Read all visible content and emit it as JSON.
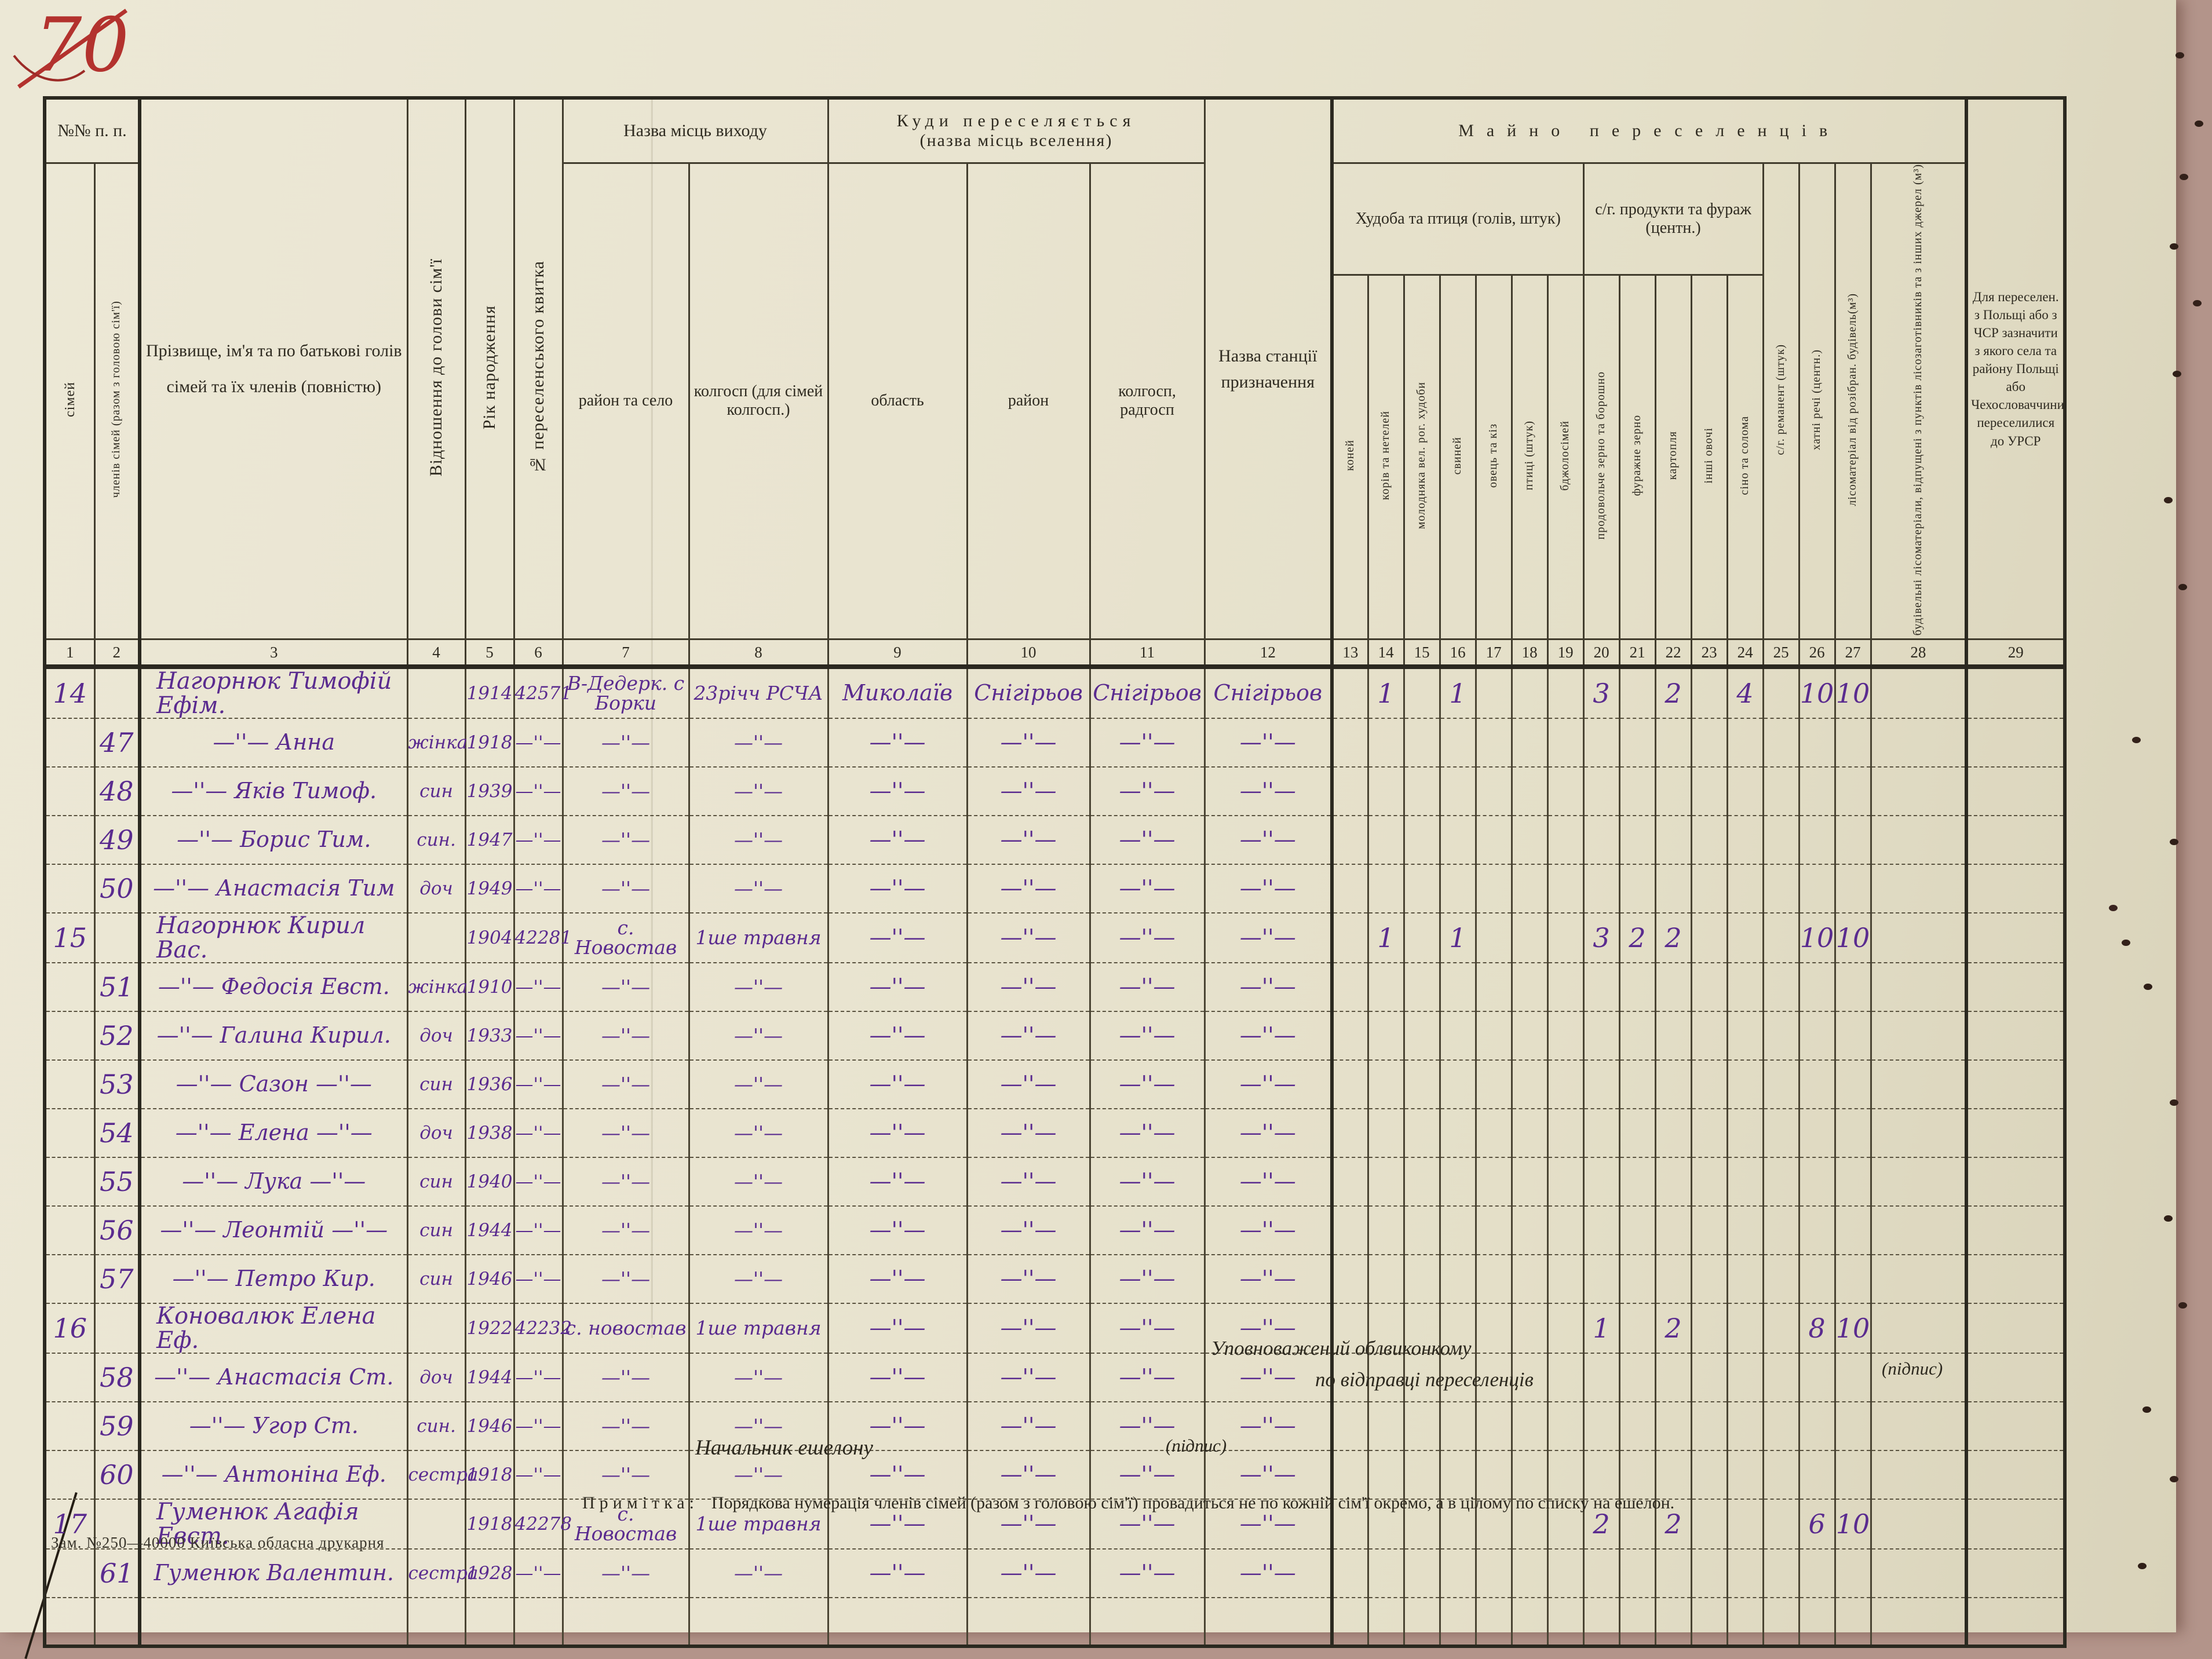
{
  "page": {
    "corner_mark": "70",
    "print_note": "Зам. №250—40000 Київська обласна друкарня"
  },
  "table": {
    "groups": {
      "nn": "№№ п. п.",
      "vyhid": "Назва місць виходу",
      "kudy": "Куди переселяється",
      "kudy_sub": "(назва місць вселення)",
      "maino": "Майно переселенців",
      "khudoba": "Худоба та птиця (голів, штук)",
      "produkty": "с/г. продукти та фураж (центн.)"
    },
    "columns": [
      "сімей",
      "членів сімей (разом з головою сім'ї)",
      "Прізвище, ім'я та по батькові голів сімей та їх членів (повністю)",
      "Відношення до голови сім'ї",
      "Рік народження",
      "№ переселенського квитка",
      "район та село",
      "колгосп (для сімей колгосп.)",
      "область",
      "район",
      "колгосп, радгосп",
      "Назва станції призначення",
      "коней",
      "корів та нетелей",
      "молодняка вел. рог. худоби",
      "свиней",
      "овець та кіз",
      "птиці (штук)",
      "бджолосімей",
      "продовольче зерно та борошно",
      "фуражне зерно",
      "картопля",
      "інші овочі",
      "сіно та солома",
      "с/г. реманент (штук)",
      "хатні речі (центн.)",
      "лісоматеріал від розібран. будівель(м³)",
      "будівельні лісоматеріали, відпущені з пунктів лісозаготівників та з інших джерел (м³)",
      "Для переселен. з Польщі або з ЧСР зазначити з якого села та району Польщі або Чехословаччини переселилися до УРСР"
    ],
    "numbers": [
      "1",
      "2",
      "3",
      "4",
      "5",
      "6",
      "7",
      "8",
      "9",
      "10",
      "11",
      "12",
      "13",
      "14",
      "15",
      "16",
      "17",
      "18",
      "19",
      "20",
      "21",
      "22",
      "23",
      "24",
      "25",
      "26",
      "27",
      "28",
      "29"
    ],
    "rows": [
      [
        "14",
        "",
        "Нагорнюк Тимофій Ефім.",
        "",
        "1914",
        "42571",
        "В-Дедерк. с Борки",
        "23річч РСЧА",
        "Миколаїв",
        "Снігірьов",
        "Снігірьов",
        "Снігірьов",
        "",
        "1",
        "",
        "1",
        "",
        "",
        "",
        "3",
        "",
        "2",
        "",
        "4",
        "",
        "10",
        "10",
        "",
        ""
      ],
      [
        "",
        "47",
        "—''— Анна",
        "жінка",
        "1918",
        "—''—",
        "—''—",
        "—''—",
        "—''—",
        "—''—",
        "—''—",
        "—''—",
        "",
        "",
        "",
        "",
        "",
        "",
        "",
        "",
        "",
        "",
        "",
        "",
        "",
        "",
        "",
        "",
        ""
      ],
      [
        "",
        "48",
        "—''— Яків Тимоф.",
        "син",
        "1939",
        "—''—",
        "—''—",
        "—''—",
        "—''—",
        "—''—",
        "—''—",
        "—''—",
        "",
        "",
        "",
        "",
        "",
        "",
        "",
        "",
        "",
        "",
        "",
        "",
        "",
        "",
        "",
        "",
        ""
      ],
      [
        "",
        "49",
        "—''— Борис Тим.",
        "син.",
        "1947",
        "—''—",
        "—''—",
        "—''—",
        "—''—",
        "—''—",
        "—''—",
        "—''—",
        "",
        "",
        "",
        "",
        "",
        "",
        "",
        "",
        "",
        "",
        "",
        "",
        "",
        "",
        "",
        "",
        ""
      ],
      [
        "",
        "50",
        "—''— Анастасія Тим",
        "доч",
        "1949",
        "—''—",
        "—''—",
        "—''—",
        "—''—",
        "—''—",
        "—''—",
        "—''—",
        "",
        "",
        "",
        "",
        "",
        "",
        "",
        "",
        "",
        "",
        "",
        "",
        "",
        "",
        "",
        "",
        ""
      ],
      [
        "15",
        "",
        "Нагорнюк Кирил Вас.",
        "",
        "1904",
        "42281",
        "с. Новостав",
        "1ше травня",
        "—''—",
        "—''—",
        "—''—",
        "—''—",
        "",
        "1",
        "",
        "1",
        "",
        "",
        "",
        "3",
        "2",
        "2",
        "",
        "",
        "",
        "10",
        "10",
        "",
        ""
      ],
      [
        "",
        "51",
        "—''— Федосія Евст.",
        "жінка",
        "1910",
        "—''—",
        "—''—",
        "—''—",
        "—''—",
        "—''—",
        "—''—",
        "—''—",
        "",
        "",
        "",
        "",
        "",
        "",
        "",
        "",
        "",
        "",
        "",
        "",
        "",
        "",
        "",
        "",
        ""
      ],
      [
        "",
        "52",
        "—''— Галина Кирил.",
        "доч",
        "1933",
        "—''—",
        "—''—",
        "—''—",
        "—''—",
        "—''—",
        "—''—",
        "—''—",
        "",
        "",
        "",
        "",
        "",
        "",
        "",
        "",
        "",
        "",
        "",
        "",
        "",
        "",
        "",
        "",
        ""
      ],
      [
        "",
        "53",
        "—''— Сазон —''—",
        "син",
        "1936",
        "—''—",
        "—''—",
        "—''—",
        "—''—",
        "—''—",
        "—''—",
        "—''—",
        "",
        "",
        "",
        "",
        "",
        "",
        "",
        "",
        "",
        "",
        "",
        "",
        "",
        "",
        "",
        "",
        ""
      ],
      [
        "",
        "54",
        "—''— Елена —''—",
        "доч",
        "1938",
        "—''—",
        "—''—",
        "—''—",
        "—''—",
        "—''—",
        "—''—",
        "—''—",
        "",
        "",
        "",
        "",
        "",
        "",
        "",
        "",
        "",
        "",
        "",
        "",
        "",
        "",
        "",
        "",
        ""
      ],
      [
        "",
        "55",
        "—''— Лука —''—",
        "син",
        "1940",
        "—''—",
        "—''—",
        "—''—",
        "—''—",
        "—''—",
        "—''—",
        "—''—",
        "",
        "",
        "",
        "",
        "",
        "",
        "",
        "",
        "",
        "",
        "",
        "",
        "",
        "",
        "",
        "",
        ""
      ],
      [
        "",
        "56",
        "—''— Леонтій —''—",
        "син",
        "1944",
        "—''—",
        "—''—",
        "—''—",
        "—''—",
        "—''—",
        "—''—",
        "—''—",
        "",
        "",
        "",
        "",
        "",
        "",
        "",
        "",
        "",
        "",
        "",
        "",
        "",
        "",
        "",
        "",
        ""
      ],
      [
        "",
        "57",
        "—''— Петро Кир.",
        "син",
        "1946",
        "—''—",
        "—''—",
        "—''—",
        "—''—",
        "—''—",
        "—''—",
        "—''—",
        "",
        "",
        "",
        "",
        "",
        "",
        "",
        "",
        "",
        "",
        "",
        "",
        "",
        "",
        "",
        "",
        ""
      ],
      [
        "16",
        "",
        "Коновалюк Елена Еф.",
        "",
        "1922",
        "42232",
        "с. новостав",
        "1ше травня",
        "—''—",
        "—''—",
        "—''—",
        "—''—",
        "",
        "",
        "",
        "",
        "",
        "",
        "",
        "1",
        "",
        "2",
        "",
        "",
        "",
        "8",
        "10",
        "",
        ""
      ],
      [
        "",
        "58",
        "—''— Анастасія Ст.",
        "доч",
        "1944",
        "—''—",
        "—''—",
        "—''—",
        "—''—",
        "—''—",
        "—''—",
        "—''—",
        "",
        "",
        "",
        "",
        "",
        "",
        "",
        "",
        "",
        "",
        "",
        "",
        "",
        "",
        "",
        "",
        ""
      ],
      [
        "",
        "59",
        "—''— Угор Ст.",
        "син.",
        "1946",
        "—''—",
        "—''—",
        "—''—",
        "—''—",
        "—''—",
        "—''—",
        "—''—",
        "",
        "",
        "",
        "",
        "",
        "",
        "",
        "",
        "",
        "",
        "",
        "",
        "",
        "",
        "",
        "",
        ""
      ],
      [
        "",
        "60",
        "—''— Антоніна Еф.",
        "сестра",
        "1918",
        "—''—",
        "—''—",
        "—''—",
        "—''—",
        "—''—",
        "—''—",
        "—''—",
        "",
        "",
        "",
        "",
        "",
        "",
        "",
        "",
        "",
        "",
        "",
        "",
        "",
        "",
        "",
        "",
        ""
      ],
      [
        "17",
        "",
        "Гуменюк Агафія Евст.",
        "",
        "1918",
        "42278",
        "с. Новостав",
        "1ше травня",
        "—''—",
        "—''—",
        "—''—",
        "—''—",
        "",
        "",
        "",
        "",
        "",
        "",
        "",
        "2",
        "",
        "2",
        "",
        "",
        "",
        "6",
        "10",
        "",
        ""
      ],
      [
        "",
        "61",
        "Гуменюк Валентин.",
        "сестра",
        "1928",
        "—''—",
        "—''—",
        "—''—",
        "—''—",
        "—''—",
        "—''—",
        "—''—",
        "",
        "",
        "",
        "",
        "",
        "",
        "",
        "",
        "",
        "",
        "",
        "",
        "",
        "",
        "",
        "",
        ""
      ],
      [
        "",
        "",
        "",
        "",
        "",
        "",
        "",
        "",
        "",
        "",
        "",
        "",
        "",
        "",
        "",
        "",
        "",
        "",
        "",
        "",
        "",
        "",
        "",
        "",
        "",
        "",
        "",
        "",
        ""
      ]
    ]
  },
  "footer": {
    "commissioner_line1": "Уповноважений облвиконкому",
    "commissioner_line2": "по відправці переселенців",
    "signature1": "(підпис)",
    "echelon_chief": "Начальник ешелону",
    "signature2": "(підпис)",
    "note_label": "Примітка:",
    "note_text": "Порядкова нумерація членів сімей (разом з головою сім'ї) провадиться не по кожній сім'ї окремо, а в цілому по списку на ешелон."
  }
}
